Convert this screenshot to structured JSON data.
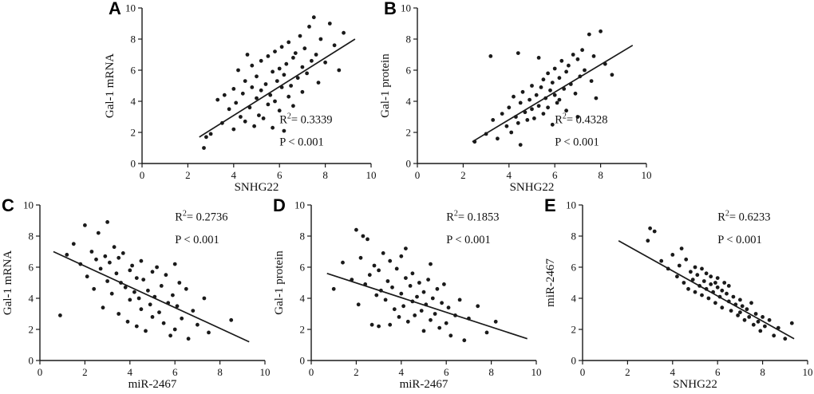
{
  "figure": {
    "background": "#ffffff",
    "point_color": "#1a1a1a",
    "line_color": "#1a1a1a",
    "axis_color": "#1a1a1a",
    "text_color": "#111111"
  },
  "chart_data": [
    {
      "id": "A",
      "type": "scatter",
      "panel_label": "A",
      "xlabel": "SNHG22",
      "ylabel": "Gal-1 mRNA",
      "xlim": [
        0,
        10
      ],
      "ylim": [
        0,
        10
      ],
      "xticks": [
        0,
        2,
        4,
        6,
        8,
        10
      ],
      "yticks": [
        0,
        2,
        4,
        6,
        8,
        10
      ],
      "r_squared": "0.3339",
      "p_line": "P < 0.001",
      "annotation_pos": "bottom-right",
      "regression_line": {
        "x1": 2.5,
        "y1": 1.7,
        "x2": 9.3,
        "y2": 8.0
      },
      "points": [
        [
          2.7,
          1.0
        ],
        [
          2.8,
          1.7
        ],
        [
          3.0,
          1.9
        ],
        [
          3.3,
          4.1
        ],
        [
          3.5,
          2.6
        ],
        [
          3.6,
          4.4
        ],
        [
          3.8,
          3.5
        ],
        [
          4.0,
          2.2
        ],
        [
          4.0,
          4.8
        ],
        [
          4.1,
          3.9
        ],
        [
          4.2,
          6.0
        ],
        [
          4.3,
          3.0
        ],
        [
          4.4,
          4.5
        ],
        [
          4.5,
          2.7
        ],
        [
          4.5,
          5.3
        ],
        [
          4.6,
          7.0
        ],
        [
          4.7,
          3.6
        ],
        [
          4.8,
          4.9
        ],
        [
          4.8,
          6.3
        ],
        [
          4.9,
          2.4
        ],
        [
          5.0,
          4.2
        ],
        [
          5.0,
          5.6
        ],
        [
          5.1,
          3.1
        ],
        [
          5.2,
          6.6
        ],
        [
          5.2,
          4.7
        ],
        [
          5.3,
          2.9
        ],
        [
          5.4,
          5.1
        ],
        [
          5.5,
          3.8
        ],
        [
          5.5,
          6.9
        ],
        [
          5.6,
          4.4
        ],
        [
          5.7,
          5.9
        ],
        [
          5.7,
          2.3
        ],
        [
          5.8,
          7.2
        ],
        [
          5.8,
          4.0
        ],
        [
          5.9,
          5.3
        ],
        [
          6.0,
          6.1
        ],
        [
          6.0,
          3.4
        ],
        [
          6.1,
          7.5
        ],
        [
          6.1,
          4.9
        ],
        [
          6.2,
          5.7
        ],
        [
          6.2,
          2.1
        ],
        [
          6.3,
          6.4
        ],
        [
          6.4,
          7.8
        ],
        [
          6.4,
          4.3
        ],
        [
          6.5,
          5.0
        ],
        [
          6.6,
          6.8
        ],
        [
          6.6,
          3.7
        ],
        [
          6.7,
          7.1
        ],
        [
          6.8,
          5.5
        ],
        [
          6.9,
          8.2
        ],
        [
          7.0,
          6.2
        ],
        [
          7.0,
          4.6
        ],
        [
          7.1,
          7.4
        ],
        [
          7.2,
          5.8
        ],
        [
          7.3,
          8.8
        ],
        [
          7.4,
          6.6
        ],
        [
          7.5,
          9.4
        ],
        [
          7.6,
          7.0
        ],
        [
          7.7,
          5.2
        ],
        [
          7.8,
          8.0
        ],
        [
          8.0,
          6.5
        ],
        [
          8.2,
          9.0
        ],
        [
          8.4,
          7.6
        ],
        [
          8.6,
          6.0
        ],
        [
          8.8,
          8.4
        ]
      ]
    },
    {
      "id": "B",
      "type": "scatter",
      "panel_label": "B",
      "xlabel": "SNHG22",
      "ylabel": "Gal-1 protein",
      "xlim": [
        0,
        10
      ],
      "ylim": [
        0,
        10
      ],
      "xticks": [
        0,
        2,
        4,
        6,
        8,
        10
      ],
      "yticks": [
        0,
        2,
        4,
        6,
        8,
        10
      ],
      "r_squared": "0.4328",
      "p_line": "P < 0.001",
      "annotation_pos": "bottom-right",
      "regression_line": {
        "x1": 2.4,
        "y1": 1.4,
        "x2": 9.4,
        "y2": 7.6
      },
      "points": [
        [
          2.5,
          1.4
        ],
        [
          3.0,
          1.9
        ],
        [
          3.2,
          6.9
        ],
        [
          3.3,
          2.8
        ],
        [
          3.5,
          1.6
        ],
        [
          3.7,
          3.2
        ],
        [
          3.9,
          2.4
        ],
        [
          4.0,
          3.6
        ],
        [
          4.1,
          2.0
        ],
        [
          4.2,
          4.3
        ],
        [
          4.3,
          3.0
        ],
        [
          4.4,
          2.6
        ],
        [
          4.4,
          7.1
        ],
        [
          4.5,
          3.9
        ],
        [
          4.5,
          1.2
        ],
        [
          4.6,
          4.6
        ],
        [
          4.7,
          3.3
        ],
        [
          4.8,
          2.8
        ],
        [
          4.9,
          4.1
        ],
        [
          5.0,
          3.5
        ],
        [
          5.0,
          5.0
        ],
        [
          5.1,
          2.9
        ],
        [
          5.2,
          4.4
        ],
        [
          5.3,
          3.7
        ],
        [
          5.3,
          6.8
        ],
        [
          5.4,
          4.9
        ],
        [
          5.5,
          3.2
        ],
        [
          5.5,
          5.4
        ],
        [
          5.6,
          4.2
        ],
        [
          5.7,
          5.8
        ],
        [
          5.7,
          3.6
        ],
        [
          5.8,
          4.7
        ],
        [
          5.9,
          5.2
        ],
        [
          5.9,
          2.5
        ],
        [
          6.0,
          4.4
        ],
        [
          6.0,
          6.1
        ],
        [
          6.1,
          3.9
        ],
        [
          6.2,
          5.5
        ],
        [
          6.2,
          4.1
        ],
        [
          6.3,
          6.6
        ],
        [
          6.4,
          4.8
        ],
        [
          6.5,
          5.9
        ],
        [
          6.5,
          3.4
        ],
        [
          6.6,
          6.3
        ],
        [
          6.7,
          5.1
        ],
        [
          6.8,
          7.0
        ],
        [
          6.9,
          4.5
        ],
        [
          7.0,
          6.7
        ],
        [
          7.0,
          3.0
        ],
        [
          7.1,
          5.6
        ],
        [
          7.2,
          7.3
        ],
        [
          7.3,
          6.0
        ],
        [
          7.5,
          8.3
        ],
        [
          7.6,
          5.3
        ],
        [
          7.7,
          6.9
        ],
        [
          7.8,
          4.2
        ],
        [
          8.0,
          8.5
        ],
        [
          8.2,
          6.4
        ],
        [
          8.5,
          5.7
        ]
      ]
    },
    {
      "id": "C",
      "type": "scatter",
      "panel_label": "C",
      "xlabel": "miR-2467",
      "ylabel": "Gal-1 mRNA",
      "xlim": [
        0,
        10
      ],
      "ylim": [
        0,
        10
      ],
      "xticks": [
        0,
        2,
        4,
        6,
        8,
        10
      ],
      "yticks": [
        0,
        2,
        4,
        6,
        8,
        10
      ],
      "r_squared": "0.2736",
      "p_line": "P < 0.001",
      "annotation_pos": "top-right",
      "regression_line": {
        "x1": 0.6,
        "y1": 7.0,
        "x2": 9.3,
        "y2": 1.2
      },
      "points": [
        [
          0.9,
          2.9
        ],
        [
          1.2,
          6.8
        ],
        [
          1.5,
          7.5
        ],
        [
          1.8,
          6.2
        ],
        [
          2.0,
          8.7
        ],
        [
          2.1,
          5.4
        ],
        [
          2.3,
          7.0
        ],
        [
          2.4,
          4.6
        ],
        [
          2.5,
          6.5
        ],
        [
          2.6,
          8.2
        ],
        [
          2.7,
          5.9
        ],
        [
          2.8,
          3.4
        ],
        [
          2.9,
          6.7
        ],
        [
          3.0,
          8.9
        ],
        [
          3.0,
          5.1
        ],
        [
          3.1,
          6.3
        ],
        [
          3.2,
          4.3
        ],
        [
          3.3,
          7.3
        ],
        [
          3.4,
          5.6
        ],
        [
          3.5,
          6.6
        ],
        [
          3.5,
          3.0
        ],
        [
          3.6,
          5.0
        ],
        [
          3.7,
          6.9
        ],
        [
          3.8,
          4.7
        ],
        [
          3.9,
          2.5
        ],
        [
          4.0,
          5.8
        ],
        [
          4.0,
          3.9
        ],
        [
          4.1,
          6.1
        ],
        [
          4.2,
          4.4
        ],
        [
          4.3,
          5.3
        ],
        [
          4.3,
          2.2
        ],
        [
          4.4,
          4.0
        ],
        [
          4.5,
          6.4
        ],
        [
          4.5,
          3.3
        ],
        [
          4.6,
          5.2
        ],
        [
          4.7,
          1.9
        ],
        [
          4.8,
          4.5
        ],
        [
          4.9,
          3.6
        ],
        [
          5.0,
          5.7
        ],
        [
          5.0,
          2.8
        ],
        [
          5.1,
          4.1
        ],
        [
          5.2,
          6.0
        ],
        [
          5.3,
          3.1
        ],
        [
          5.4,
          4.8
        ],
        [
          5.5,
          2.4
        ],
        [
          5.6,
          5.5
        ],
        [
          5.7,
          3.7
        ],
        [
          5.8,
          1.6
        ],
        [
          5.9,
          4.2
        ],
        [
          6.0,
          6.2
        ],
        [
          6.0,
          2.0
        ],
        [
          6.1,
          3.5
        ],
        [
          6.2,
          5.0
        ],
        [
          6.3,
          2.7
        ],
        [
          6.5,
          4.6
        ],
        [
          6.6,
          1.4
        ],
        [
          6.8,
          3.2
        ],
        [
          7.0,
          2.3
        ],
        [
          7.3,
          4.0
        ],
        [
          7.5,
          1.8
        ],
        [
          8.5,
          2.6
        ]
      ]
    },
    {
      "id": "D",
      "type": "scatter",
      "panel_label": "D",
      "xlabel": "miR-2467",
      "ylabel": "Gal-1 protein",
      "xlim": [
        0,
        10
      ],
      "ylim": [
        0,
        10
      ],
      "xticks": [
        0,
        2,
        4,
        6,
        8,
        10
      ],
      "yticks": [
        0,
        2,
        4,
        6,
        8,
        10
      ],
      "r_squared": "0.1853",
      "p_line": "P < 0.001",
      "annotation_pos": "top-right",
      "regression_line": {
        "x1": 0.7,
        "y1": 5.6,
        "x2": 9.6,
        "y2": 1.4
      },
      "points": [
        [
          1.0,
          4.6
        ],
        [
          1.4,
          6.3
        ],
        [
          1.8,
          5.2
        ],
        [
          2.0,
          8.4
        ],
        [
          2.1,
          3.6
        ],
        [
          2.2,
          6.6
        ],
        [
          2.3,
          8.0
        ],
        [
          2.4,
          4.9
        ],
        [
          2.5,
          7.8
        ],
        [
          2.6,
          5.5
        ],
        [
          2.7,
          2.3
        ],
        [
          2.8,
          6.1
        ],
        [
          2.9,
          4.2
        ],
        [
          3.0,
          5.8
        ],
        [
          3.0,
          2.2
        ],
        [
          3.1,
          4.5
        ],
        [
          3.2,
          6.9
        ],
        [
          3.3,
          3.9
        ],
        [
          3.4,
          5.1
        ],
        [
          3.5,
          2.3
        ],
        [
          3.5,
          6.4
        ],
        [
          3.6,
          4.7
        ],
        [
          3.7,
          3.3
        ],
        [
          3.8,
          5.9
        ],
        [
          3.9,
          2.8
        ],
        [
          4.0,
          4.3
        ],
        [
          4.0,
          6.7
        ],
        [
          4.1,
          3.5
        ],
        [
          4.2,
          5.3
        ],
        [
          4.2,
          7.2
        ],
        [
          4.3,
          2.5
        ],
        [
          4.4,
          4.8
        ],
        [
          4.5,
          3.8
        ],
        [
          4.5,
          5.6
        ],
        [
          4.6,
          2.9
        ],
        [
          4.7,
          4.1
        ],
        [
          4.8,
          5.0
        ],
        [
          4.9,
          3.2
        ],
        [
          5.0,
          4.4
        ],
        [
          5.0,
          1.9
        ],
        [
          5.1,
          3.6
        ],
        [
          5.2,
          5.2
        ],
        [
          5.3,
          2.6
        ],
        [
          5.3,
          6.2
        ],
        [
          5.4,
          4.0
        ],
        [
          5.5,
          3.0
        ],
        [
          5.6,
          4.6
        ],
        [
          5.7,
          2.1
        ],
        [
          5.8,
          3.7
        ],
        [
          5.9,
          4.9
        ],
        [
          6.0,
          2.4
        ],
        [
          6.1,
          3.4
        ],
        [
          6.2,
          1.6
        ],
        [
          6.4,
          2.9
        ],
        [
          6.6,
          3.9
        ],
        [
          6.8,
          1.3
        ],
        [
          7.0,
          2.7
        ],
        [
          7.4,
          3.5
        ],
        [
          7.8,
          1.8
        ],
        [
          8.2,
          2.5
        ]
      ]
    },
    {
      "id": "E",
      "type": "scatter",
      "panel_label": "E",
      "xlabel": "SNHG22",
      "ylabel": "miR-2467",
      "xlim": [
        0,
        10
      ],
      "ylim": [
        0,
        10
      ],
      "xticks": [
        0,
        2,
        4,
        6,
        8,
        10
      ],
      "yticks": [
        0,
        2,
        4,
        6,
        8,
        10
      ],
      "r_squared": "0.6233",
      "p_line": "P < 0.001",
      "annotation_pos": "top-right",
      "regression_line": {
        "x1": 1.6,
        "y1": 7.7,
        "x2": 9.4,
        "y2": 1.4
      },
      "points": [
        [
          2.9,
          7.7
        ],
        [
          3.0,
          8.5
        ],
        [
          3.2,
          8.3
        ],
        [
          3.5,
          6.4
        ],
        [
          3.8,
          5.9
        ],
        [
          4.0,
          6.8
        ],
        [
          4.2,
          5.4
        ],
        [
          4.3,
          6.1
        ],
        [
          4.4,
          7.2
        ],
        [
          4.5,
          5.0
        ],
        [
          4.6,
          6.5
        ],
        [
          4.7,
          4.6
        ],
        [
          4.8,
          5.7
        ],
        [
          4.9,
          5.2
        ],
        [
          5.0,
          4.4
        ],
        [
          5.0,
          6.0
        ],
        [
          5.1,
          5.5
        ],
        [
          5.2,
          4.8
        ],
        [
          5.3,
          5.9
        ],
        [
          5.3,
          4.2
        ],
        [
          5.4,
          5.1
        ],
        [
          5.5,
          4.6
        ],
        [
          5.5,
          5.6
        ],
        [
          5.6,
          4.0
        ],
        [
          5.7,
          4.9
        ],
        [
          5.7,
          5.4
        ],
        [
          5.8,
          4.4
        ],
        [
          5.9,
          5.0
        ],
        [
          5.9,
          3.7
        ],
        [
          6.0,
          4.7
        ],
        [
          6.0,
          5.3
        ],
        [
          6.1,
          4.1
        ],
        [
          6.2,
          4.5
        ],
        [
          6.2,
          3.4
        ],
        [
          6.3,
          5.0
        ],
        [
          6.4,
          4.3
        ],
        [
          6.5,
          3.8
        ],
        [
          6.5,
          4.8
        ],
        [
          6.6,
          3.2
        ],
        [
          6.7,
          4.1
        ],
        [
          6.8,
          3.6
        ],
        [
          6.9,
          2.9
        ],
        [
          7.0,
          3.9
        ],
        [
          7.0,
          3.1
        ],
        [
          7.1,
          3.5
        ],
        [
          7.2,
          2.6
        ],
        [
          7.3,
          3.3
        ],
        [
          7.4,
          2.8
        ],
        [
          7.5,
          3.7
        ],
        [
          7.6,
          2.3
        ],
        [
          7.7,
          3.0
        ],
        [
          7.8,
          2.5
        ],
        [
          7.9,
          1.9
        ],
        [
          8.0,
          2.8
        ],
        [
          8.1,
          2.2
        ],
        [
          8.3,
          2.6
        ],
        [
          8.5,
          1.6
        ],
        [
          8.7,
          2.1
        ],
        [
          9.0,
          1.4
        ],
        [
          9.3,
          2.4
        ]
      ]
    }
  ]
}
